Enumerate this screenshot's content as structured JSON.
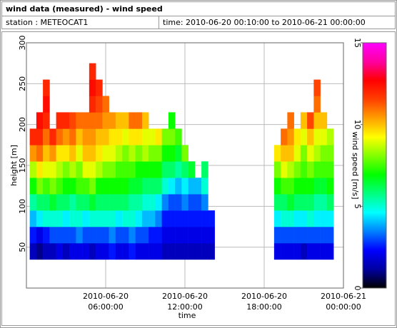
{
  "chart_data": {
    "type": "heatmap",
    "title": "wind data (measured) - wind speed",
    "station": "station : METEOCAT1",
    "period": "time: 2010-06-20 00:10:00 to 2010-06-21 00:00:00",
    "x_label": "time",
    "y_label": "height [m]",
    "colorbar_label": "wind speed [m/s]",
    "xlim": [
      "2010-06-20 00:00:00",
      "2010-06-21 00:00:00"
    ],
    "xticks": [
      "2010-06-20 06:00:00",
      "2010-06-20 12:00:00",
      "2010-06-20 18:00:00",
      "2010-06-21 00:00:00"
    ],
    "ylim": [
      0,
      300
    ],
    "yticks": [
      50,
      100,
      150,
      200,
      250,
      300
    ],
    "zlim": [
      0,
      15
    ],
    "zticks": [
      0,
      5,
      10,
      15
    ],
    "grid": true,
    "colorscale": [
      "#000000",
      "#0000a0",
      "#0000ff",
      "#0080ff",
      "#00ffff",
      "#00ff80",
      "#00ff00",
      "#80ff00",
      "#ffff00",
      "#ffa000",
      "#ff4000",
      "#ff0000",
      "#ff00a0",
      "#ff00ff"
    ],
    "x": [
      "2010-06-20 00:30:00",
      "2010-06-20 01:00:00",
      "2010-06-20 01:30:00",
      "2010-06-20 02:00:00",
      "2010-06-20 02:30:00",
      "2010-06-20 03:00:00",
      "2010-06-20 03:30:00",
      "2010-06-20 04:00:00",
      "2010-06-20 04:30:00",
      "2010-06-20 05:00:00",
      "2010-06-20 05:30:00",
      "2010-06-20 06:00:00",
      "2010-06-20 06:30:00",
      "2010-06-20 07:00:00",
      "2010-06-20 07:30:00",
      "2010-06-20 08:00:00",
      "2010-06-20 08:30:00",
      "2010-06-20 09:00:00",
      "2010-06-20 09:30:00",
      "2010-06-20 10:00:00",
      "2010-06-20 10:30:00",
      "2010-06-20 11:00:00",
      "2010-06-20 11:30:00",
      "2010-06-20 12:00:00",
      "2010-06-20 12:30:00",
      "2010-06-20 13:00:00",
      "2010-06-20 13:30:00",
      "2010-06-20 14:00:00",
      "2010-06-20 19:00:00",
      "2010-06-20 19:30:00",
      "2010-06-20 20:00:00",
      "2010-06-20 20:30:00",
      "2010-06-20 21:00:00",
      "2010-06-20 21:30:00",
      "2010-06-20 22:00:00",
      "2010-06-20 22:30:00",
      "2010-06-20 23:00:00"
    ],
    "y": [
      45,
      65,
      85,
      105,
      125,
      145,
      165,
      185,
      205,
      225,
      245,
      265
    ],
    "z": [
      [
        1.5,
        2.5,
        4,
        5.5,
        7,
        8.5,
        10.5,
        12,
        null,
        null,
        null,
        null
      ],
      [
        1,
        2,
        4.5,
        6,
        8,
        9.5,
        11,
        12,
        12.5,
        null,
        null,
        null
      ],
      [
        1.5,
        2.5,
        5,
        6,
        7.5,
        9,
        10,
        11,
        12,
        12.5,
        12,
        null
      ],
      [
        1.5,
        3,
        5,
        6.5,
        8,
        9,
        10.5,
        12,
        null,
        null,
        null,
        null
      ],
      [
        2,
        3,
        5,
        6,
        7.5,
        8.5,
        9.5,
        11,
        12,
        null,
        null,
        null
      ],
      [
        1.5,
        3,
        4.5,
        6,
        7,
        8,
        9.5,
        10.5,
        12,
        null,
        null,
        null
      ],
      [
        2,
        3,
        5,
        5.5,
        7,
        8.5,
        10,
        11,
        11.5,
        null,
        null,
        null
      ],
      [
        2,
        3.5,
        5,
        6,
        7.5,
        8,
        9,
        10,
        11,
        null,
        null,
        null
      ],
      [
        2,
        3,
        4.5,
        6,
        7.5,
        9,
        10,
        10.5,
        11,
        null,
        null,
        null
      ],
      [
        1.5,
        3,
        5,
        6.5,
        8,
        9,
        10,
        10.5,
        11,
        12,
        12.5,
        12
      ],
      [
        2,
        3,
        5,
        6,
        7,
        8.5,
        9.5,
        10,
        11,
        11.5,
        12,
        null
      ],
      [
        2,
        3,
        5,
        6,
        7,
        8,
        9,
        10,
        10.5,
        11,
        null,
        null
      ],
      [
        2.5,
        3.5,
        5,
        6,
        7,
        8,
        9,
        9.5,
        10.5,
        null,
        null,
        null
      ],
      [
        2,
        3,
        4.5,
        6,
        7,
        7.5,
        8.5,
        9.5,
        10,
        null,
        null,
        null
      ],
      [
        2,
        3,
        5,
        6,
        7,
        7.5,
        8,
        9,
        10,
        null,
        null,
        null
      ],
      [
        2.5,
        3.5,
        5,
        5.5,
        6.5,
        7.5,
        8.5,
        9.5,
        11,
        null,
        null,
        null
      ],
      [
        2,
        3,
        4.5,
        5.5,
        6.5,
        7,
        8,
        9.5,
        11,
        null,
        null,
        null
      ],
      [
        2,
        3,
        4,
        5,
        6,
        7,
        8.5,
        9,
        10,
        null,
        null,
        null
      ],
      [
        2,
        2.5,
        4,
        5,
        6,
        7,
        8,
        9,
        null,
        null,
        null,
        null
      ],
      [
        2,
        2.5,
        3.5,
        4.5,
        6,
        7,
        8,
        9.5,
        null,
        null,
        null,
        null
      ],
      [
        1.5,
        2,
        2.5,
        3.5,
        5,
        6,
        7,
        8,
        null,
        null,
        null,
        null
      ],
      [
        1.5,
        2,
        2.5,
        3,
        4.5,
        6,
        7,
        8,
        7,
        null,
        null,
        null
      ],
      [
        1.5,
        2,
        2.5,
        3,
        4,
        5.5,
        6.5,
        7.5,
        null,
        null,
        null,
        null
      ],
      [
        1.5,
        2,
        2.5,
        3.5,
        4.5,
        6,
        8,
        null,
        null,
        null,
        null,
        null
      ],
      [
        1.5,
        2,
        2.5,
        3,
        4,
        6.5,
        null,
        null,
        null,
        null,
        null,
        null
      ],
      [
        1.5,
        2,
        2.5,
        3,
        4,
        null,
        null,
        null,
        null,
        null,
        null,
        null
      ],
      [
        1.5,
        2,
        2.5,
        3.5,
        5,
        6,
        null,
        null,
        null,
        null,
        null,
        null
      ],
      [
        1.5,
        2,
        2.5,
        null,
        null,
        null,
        null,
        null,
        null,
        null,
        null,
        null
      ],
      [
        2,
        3,
        4.5,
        6,
        7,
        8,
        9.5,
        null,
        null,
        null,
        null,
        null
      ],
      [
        2,
        3,
        5,
        6,
        7.5,
        9,
        10,
        11,
        null,
        null,
        null,
        null
      ],
      [
        2,
        3,
        5,
        6.5,
        7.5,
        8.5,
        10,
        10.5,
        11,
        null,
        null,
        null
      ],
      [
        2,
        3,
        4.5,
        6,
        7,
        8,
        9,
        9.5,
        null,
        null,
        null,
        null
      ],
      [
        1.5,
        3,
        4.5,
        6,
        7,
        7.5,
        8,
        9,
        10,
        null,
        null,
        null
      ],
      [
        2,
        3,
        5,
        6,
        7,
        8,
        9,
        10,
        11.5,
        null,
        null,
        null
      ],
      [
        2,
        3,
        4.5,
        5.5,
        6.5,
        7.5,
        8.5,
        9,
        10,
        11,
        11.5,
        null
      ],
      [
        2,
        3,
        4.5,
        5.5,
        6.5,
        7.5,
        8,
        9,
        10,
        null,
        null,
        null
      ],
      [
        2,
        3,
        4.5,
        6,
        7,
        7.5,
        8,
        8.5,
        null,
        null,
        null,
        null
      ]
    ]
  }
}
